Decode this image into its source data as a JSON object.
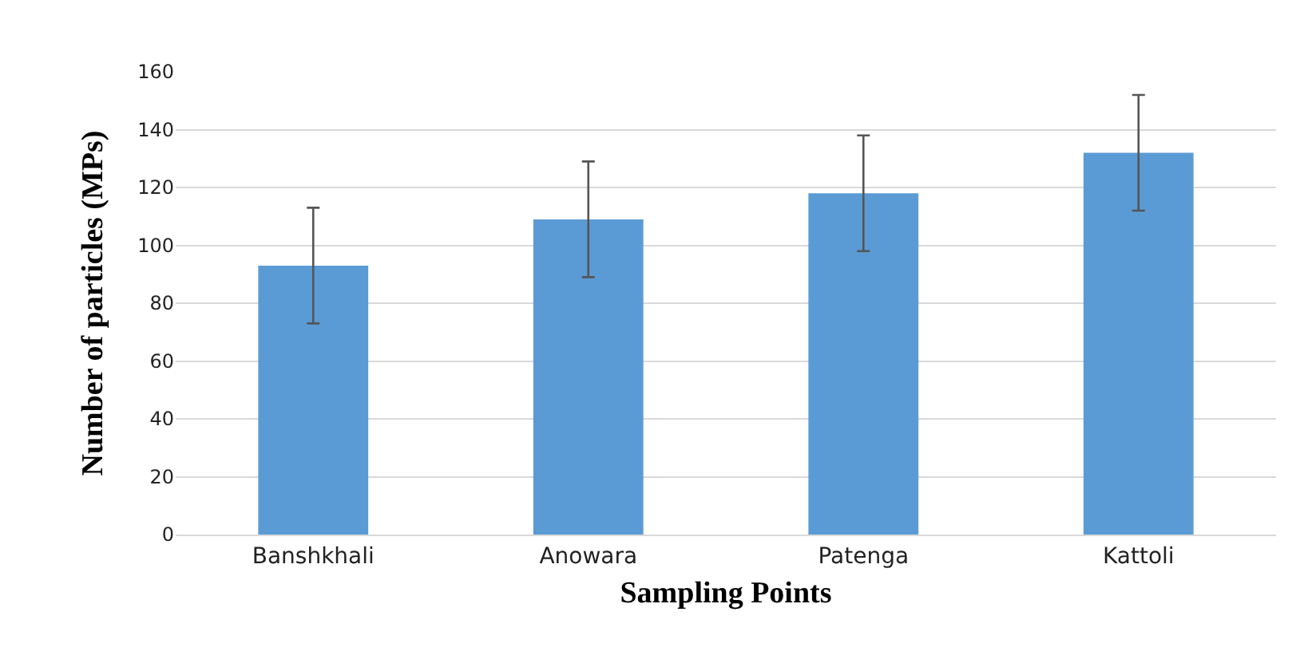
{
  "chart_data": {
    "type": "bar",
    "xlabel": "Sampling Points",
    "ylabel": "Number of particles (MPs)",
    "categories": [
      "Banshkhali",
      "Anowara",
      "Patenga",
      "Kattoli"
    ],
    "values": [
      93,
      109,
      118,
      132
    ],
    "errors": [
      20,
      20,
      20,
      20
    ],
    "color": "#5b9bd5",
    "ylim": [
      0,
      160
    ],
    "yticks": [
      0,
      20,
      40,
      60,
      80,
      100,
      120,
      140,
      160
    ],
    "grid": "y"
  }
}
